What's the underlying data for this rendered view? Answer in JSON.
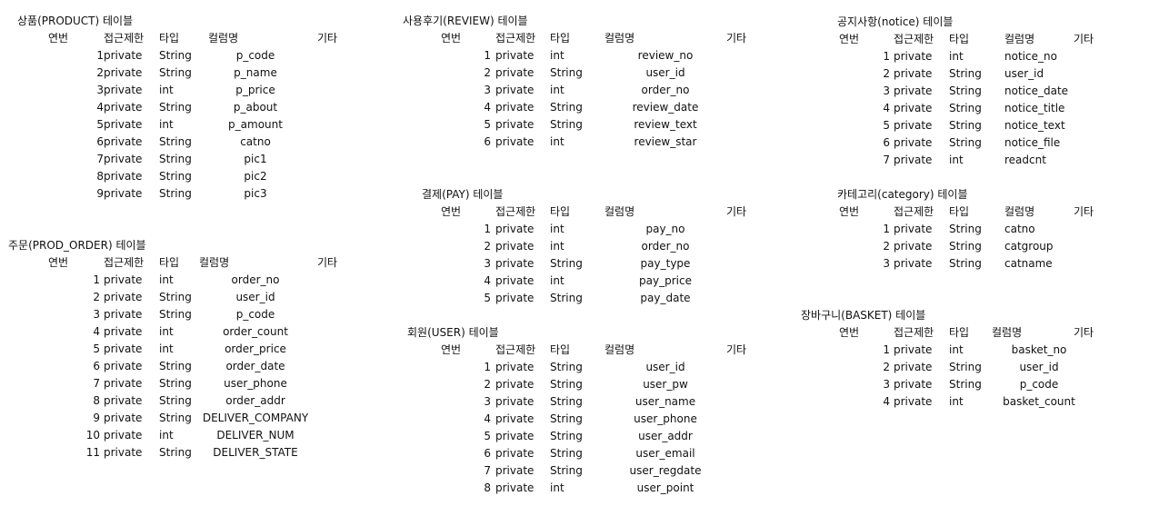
{
  "headers": {
    "no": "연번",
    "access": "접근제한",
    "type": "타입",
    "column": "컬럼명",
    "etc": "기타"
  },
  "tables": [
    {
      "key": "product",
      "title": "상품(PRODUCT) 테이블",
      "rows": [
        {
          "no": "1",
          "access": "private",
          "type": "String",
          "column": "p_code"
        },
        {
          "no": "2",
          "access": "private",
          "type": "String",
          "column": "p_name"
        },
        {
          "no": "3",
          "access": "private",
          "type": "int",
          "column": "p_price"
        },
        {
          "no": "4",
          "access": "private",
          "type": "String",
          "column": "p_about"
        },
        {
          "no": "5",
          "access": "private",
          "type": "int",
          "column": "p_amount"
        },
        {
          "no": "6",
          "access": "private",
          "type": "String",
          "column": "catno"
        },
        {
          "no": "7",
          "access": "private",
          "type": "String",
          "column": "pic1"
        },
        {
          "no": "8",
          "access": "private",
          "type": "String",
          "column": "pic2"
        },
        {
          "no": "9",
          "access": "private",
          "type": "String",
          "column": "pic3"
        }
      ]
    },
    {
      "key": "prod-order",
      "title": "주문(PROD_ORDER) 테이블",
      "rows": [
        {
          "no": "1",
          "access": "private",
          "type": "int",
          "column": "order_no"
        },
        {
          "no": "2",
          "access": "private",
          "type": "String",
          "column": "user_id"
        },
        {
          "no": "3",
          "access": "private",
          "type": "String",
          "column": "p_code"
        },
        {
          "no": "4",
          "access": "private",
          "type": "int",
          "column": "order_count"
        },
        {
          "no": "5",
          "access": "private",
          "type": "int",
          "column": "order_price"
        },
        {
          "no": "6",
          "access": "private",
          "type": "String",
          "column": "order_date"
        },
        {
          "no": "7",
          "access": "private",
          "type": "String",
          "column": "user_phone"
        },
        {
          "no": "8",
          "access": "private",
          "type": "String",
          "column": "order_addr"
        },
        {
          "no": "9",
          "access": "private",
          "type": "String",
          "column": "DELIVER_COMPANY"
        },
        {
          "no": "10",
          "access": "private",
          "type": "int",
          "column": "DELIVER_NUM"
        },
        {
          "no": "11",
          "access": "private",
          "type": "String",
          "column": "DELIVER_STATE"
        }
      ]
    },
    {
      "key": "review",
      "title": "사용후기(REVIEW) 테이블",
      "rows": [
        {
          "no": "1",
          "access": "private",
          "type": "int",
          "column": "review_no"
        },
        {
          "no": "2",
          "access": "private",
          "type": "String",
          "column": "user_id"
        },
        {
          "no": "3",
          "access": "private",
          "type": "int",
          "column": "order_no"
        },
        {
          "no": "4",
          "access": "private",
          "type": "String",
          "column": "review_date"
        },
        {
          "no": "5",
          "access": "private",
          "type": "String",
          "column": "review_text"
        },
        {
          "no": "6",
          "access": "private",
          "type": "int",
          "column": "review_star"
        }
      ]
    },
    {
      "key": "pay",
      "title": "결제(PAY) 테이블",
      "rows": [
        {
          "no": "1",
          "access": "private",
          "type": "int",
          "column": "pay_no"
        },
        {
          "no": "2",
          "access": "private",
          "type": "int",
          "column": "order_no"
        },
        {
          "no": "3",
          "access": "private",
          "type": "String",
          "column": "pay_type"
        },
        {
          "no": "4",
          "access": "private",
          "type": "int",
          "column": "pay_price"
        },
        {
          "no": "5",
          "access": "private",
          "type": "String",
          "column": "pay_date"
        }
      ]
    },
    {
      "key": "user",
      "title": "회원(USER) 테이블",
      "rows": [
        {
          "no": "1",
          "access": "private",
          "type": "String",
          "column": "user_id"
        },
        {
          "no": "2",
          "access": "private",
          "type": "String",
          "column": "user_pw"
        },
        {
          "no": "3",
          "access": "private",
          "type": "String",
          "column": "user_name"
        },
        {
          "no": "4",
          "access": "private",
          "type": "String",
          "column": "user_phone"
        },
        {
          "no": "5",
          "access": "private",
          "type": "String",
          "column": "user_addr"
        },
        {
          "no": "6",
          "access": "private",
          "type": "String",
          "column": "user_email"
        },
        {
          "no": "7",
          "access": "private",
          "type": "String",
          "column": "user_regdate"
        },
        {
          "no": "8",
          "access": "private",
          "type": "int",
          "column": "user_point"
        }
      ]
    },
    {
      "key": "notice",
      "title": "공지사항(notice) 테이블",
      "rows": [
        {
          "no": "1",
          "access": "private",
          "type": "int",
          "column": "notice_no"
        },
        {
          "no": "2",
          "access": "private",
          "type": "String",
          "column": "user_id"
        },
        {
          "no": "3",
          "access": "private",
          "type": "String",
          "column": "notice_date"
        },
        {
          "no": "4",
          "access": "private",
          "type": "String",
          "column": "notice_title"
        },
        {
          "no": "5",
          "access": "private",
          "type": "String",
          "column": "notice_text"
        },
        {
          "no": "6",
          "access": "private",
          "type": "String",
          "column": "notice_file"
        },
        {
          "no": "7",
          "access": "private",
          "type": "int",
          "column": "readcnt"
        }
      ]
    },
    {
      "key": "category",
      "title": "카테고리(category) 테이블",
      "rows": [
        {
          "no": "1",
          "access": "private",
          "type": "String",
          "column": "catno"
        },
        {
          "no": "2",
          "access": "private",
          "type": "String",
          "column": "catgroup"
        },
        {
          "no": "3",
          "access": "private",
          "type": "String",
          "column": "catname"
        }
      ]
    },
    {
      "key": "basket",
      "title": "장바구니(BASKET) 테이블",
      "rows": [
        {
          "no": "1",
          "access": "private",
          "type": "int",
          "column": "basket_no"
        },
        {
          "no": "2",
          "access": "private",
          "type": "String",
          "column": "user_id"
        },
        {
          "no": "3",
          "access": "private",
          "type": "String",
          "column": "p_code"
        },
        {
          "no": "4",
          "access": "private",
          "type": "int",
          "column": "basket_count"
        }
      ]
    }
  ]
}
